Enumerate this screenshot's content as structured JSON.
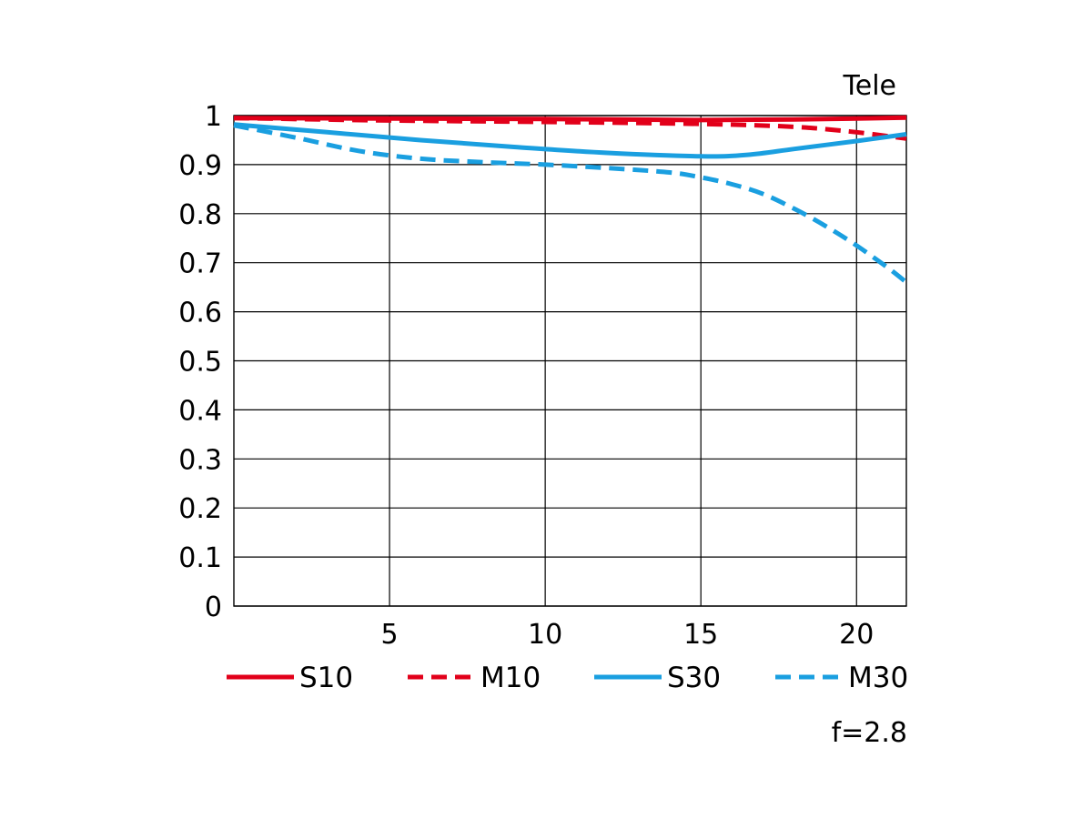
{
  "chart_data": {
    "type": "line",
    "title": "",
    "corner_label": "Tele",
    "footnote": "f=2.8",
    "xlabel": "",
    "ylabel": "",
    "xlim": [
      0,
      21.6
    ],
    "ylim": [
      0,
      1
    ],
    "x_ticks": [
      5,
      10,
      15,
      20
    ],
    "x_tick_labels": [
      "5",
      "10",
      "15",
      "20"
    ],
    "y_ticks": [
      0,
      0.1,
      0.2,
      0.3,
      0.4,
      0.5,
      0.6,
      0.7,
      0.8,
      0.9,
      1
    ],
    "y_tick_labels": [
      "0",
      "0.1",
      "0.2",
      "0.3",
      "0.4",
      "0.5",
      "0.6",
      "0.7",
      "0.8",
      "0.9",
      "1"
    ],
    "grid": true,
    "legend_position": "bottom",
    "series": [
      {
        "name": "S10",
        "color": "#e2001a",
        "dash": "solid",
        "x": [
          0,
          5,
          10,
          15,
          18,
          20,
          21.6
        ],
        "y": [
          0.995,
          0.994,
          0.993,
          0.991,
          0.992,
          0.994,
          0.996
        ]
      },
      {
        "name": "M10",
        "color": "#e2001a",
        "dash": "dashed",
        "x": [
          0,
          5,
          10,
          15,
          18,
          20,
          21.6
        ],
        "y": [
          0.995,
          0.99,
          0.987,
          0.983,
          0.977,
          0.966,
          0.953
        ]
      },
      {
        "name": "S30",
        "color": "#1a9fe0",
        "dash": "solid",
        "x": [
          0,
          3,
          6,
          9,
          12,
          15,
          16.5,
          18,
          20,
          21.6
        ],
        "y": [
          0.982,
          0.966,
          0.95,
          0.936,
          0.924,
          0.917,
          0.92,
          0.932,
          0.948,
          0.962
        ]
      },
      {
        "name": "M30",
        "color": "#1a9fe0",
        "dash": "dashed",
        "x": [
          0,
          2,
          4,
          6,
          8,
          10,
          12,
          14,
          15,
          16,
          17,
          18,
          19,
          20,
          21,
          21.6
        ],
        "y": [
          0.98,
          0.955,
          0.928,
          0.912,
          0.905,
          0.9,
          0.893,
          0.884,
          0.874,
          0.86,
          0.84,
          0.81,
          0.775,
          0.735,
          0.69,
          0.66
        ]
      }
    ]
  }
}
